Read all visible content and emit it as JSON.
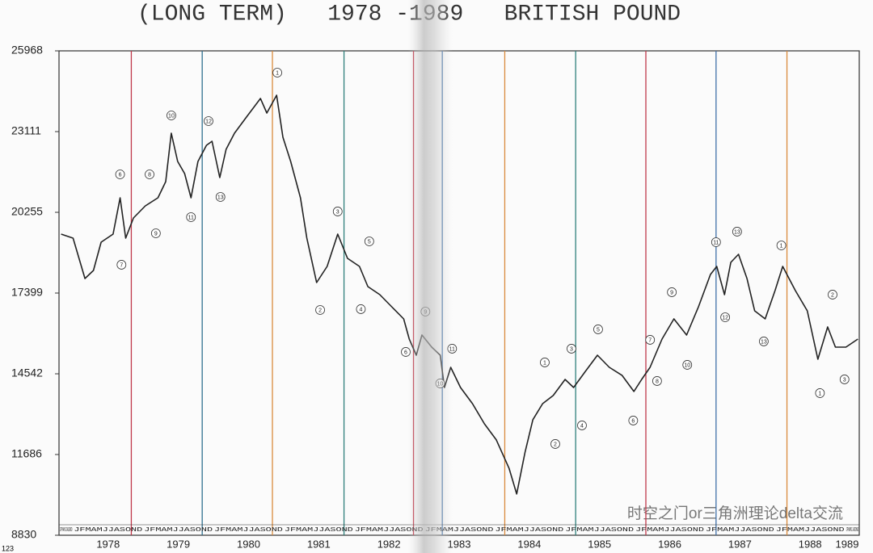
{
  "chart_data": {
    "type": "line",
    "title": "(LONG TERM)   1978 -1989   BRITISH POUND",
    "corner_label": "123",
    "month_strip": "JFMAMJJASOND",
    "watermark": "时空之门or三角洲理论delta交流",
    "xlim": [
      1977.8,
      1989.2
    ],
    "ylim": [
      8830,
      25968
    ],
    "yticks": [
      8830,
      11686,
      14542,
      17399,
      20255,
      23111,
      25968
    ],
    "xticks": [
      {
        "value": 1978.5,
        "label": "1978"
      },
      {
        "value": 1979.5,
        "label": "1979"
      },
      {
        "value": 1980.5,
        "label": "1980"
      },
      {
        "value": 1981.5,
        "label": "1981"
      },
      {
        "value": 1982.5,
        "label": "1982"
      },
      {
        "value": 1983.5,
        "label": "1983"
      },
      {
        "value": 1984.5,
        "label": "1984"
      },
      {
        "value": 1985.5,
        "label": "1985"
      },
      {
        "value": 1986.5,
        "label": "1986"
      },
      {
        "value": 1987.5,
        "label": "1987"
      },
      {
        "value": 1988.5,
        "label": "1988"
      },
      {
        "value": 1989.5,
        "label": "1989"
      }
    ],
    "cycle_lines": [
      {
        "x": 1978.83,
        "color": "#c0394a"
      },
      {
        "x": 1979.84,
        "color": "#2f6f8f"
      },
      {
        "x": 1980.84,
        "color": "#d98a3c"
      },
      {
        "x": 1981.86,
        "color": "#2f7f7a"
      },
      {
        "x": 1982.85,
        "color": "#c0394a"
      },
      {
        "x": 1983.26,
        "color": "#3f6fa8"
      },
      {
        "x": 1984.15,
        "color": "#d98a3c"
      },
      {
        "x": 1985.16,
        "color": "#2f7f7a"
      },
      {
        "x": 1986.16,
        "color": "#c0394a"
      },
      {
        "x": 1987.16,
        "color": "#3f6fa8"
      },
      {
        "x": 1988.17,
        "color": "#d98a3c"
      }
    ],
    "x": [
      1977.83,
      1978.0,
      1978.17,
      1978.29,
      1978.4,
      1978.57,
      1978.67,
      1978.75,
      1978.86,
      1979.03,
      1979.21,
      1979.32,
      1979.4,
      1979.49,
      1979.59,
      1979.68,
      1979.78,
      1979.9,
      1979.98,
      1980.09,
      1980.18,
      1980.3,
      1980.47,
      1980.67,
      1980.76,
      1980.9,
      1980.99,
      1981.1,
      1981.24,
      1981.33,
      1981.47,
      1981.62,
      1981.77,
      1981.91,
      1982.08,
      1982.2,
      1982.37,
      1982.54,
      1982.71,
      1982.79,
      1982.89,
      1982.97,
      1983.11,
      1983.23,
      1983.29,
      1983.38,
      1983.52,
      1983.69,
      1983.86,
      1984.03,
      1984.21,
      1984.32,
      1984.44,
      1984.55,
      1984.69,
      1984.84,
      1985.01,
      1985.13,
      1985.3,
      1985.47,
      1985.64,
      1985.82,
      1985.99,
      1986.1,
      1986.22,
      1986.39,
      1986.56,
      1986.74,
      1986.91,
      1987.08,
      1987.17,
      1987.28,
      1987.37,
      1987.48,
      1987.6,
      1987.71,
      1987.86,
      1988.0,
      1988.11,
      1988.29,
      1988.46,
      1988.61,
      1988.75,
      1988.86,
      1989.01,
      1989.18
    ],
    "series": [
      {
        "color": "#222222",
        "values": [
          19485,
          19342,
          17914,
          18200,
          19199,
          19485,
          20770,
          19342,
          20056,
          20484,
          20770,
          21341,
          23055,
          22055,
          21627,
          20770,
          22055,
          22626,
          22769,
          21484,
          22484,
          23055,
          23626,
          24283,
          23769,
          24397,
          22912,
          22055,
          20770,
          19342,
          17771,
          18342,
          19485,
          18628,
          18342,
          17628,
          17343,
          16914,
          16486,
          15772,
          15201,
          15915,
          15486,
          15201,
          14058,
          14772,
          14058,
          13487,
          12773,
          12202,
          11203,
          10289,
          11774,
          12916,
          13487,
          13773,
          14344,
          14058,
          14630,
          15201,
          14772,
          14487,
          13916,
          14344,
          14772,
          15772,
          16486,
          15915,
          16914,
          18057,
          18342,
          17343,
          18485,
          18771,
          17914,
          16772,
          16486,
          17486,
          18342,
          17486,
          16772,
          15058,
          16200,
          15486,
          15486,
          15772
        ]
      }
    ],
    "annotations": [
      {
        "label": "6",
        "x": 1978.67,
        "y": 21598
      },
      {
        "label": "7",
        "x": 1978.69,
        "y": 18400
      },
      {
        "label": "8",
        "x": 1979.09,
        "y": 21598
      },
      {
        "label": "9",
        "x": 1979.18,
        "y": 19513
      },
      {
        "label": "10",
        "x": 1979.4,
        "y": 23683
      },
      {
        "label": "11",
        "x": 1979.68,
        "y": 20085
      },
      {
        "label": "12",
        "x": 1979.93,
        "y": 23483
      },
      {
        "label": "13",
        "x": 1980.1,
        "y": 20799
      },
      {
        "label": "1",
        "x": 1980.91,
        "y": 25197
      },
      {
        "label": "3",
        "x": 1981.77,
        "y": 20285
      },
      {
        "label": "2",
        "x": 1981.52,
        "y": 16800
      },
      {
        "label": "5",
        "x": 1982.22,
        "y": 19228
      },
      {
        "label": "4",
        "x": 1982.1,
        "y": 16829
      },
      {
        "label": "9",
        "x": 1983.02,
        "y": 16743
      },
      {
        "label": "6",
        "x": 1982.74,
        "y": 15315
      },
      {
        "label": "11",
        "x": 1983.4,
        "y": 15430
      },
      {
        "label": "10",
        "x": 1983.23,
        "y": 14202
      },
      {
        "label": "1",
        "x": 1984.72,
        "y": 14944
      },
      {
        "label": "2",
        "x": 1984.87,
        "y": 12059
      },
      {
        "label": "3",
        "x": 1985.1,
        "y": 15430
      },
      {
        "label": "4",
        "x": 1985.25,
        "y": 12716
      },
      {
        "label": "5",
        "x": 1985.48,
        "y": 16115
      },
      {
        "label": "6",
        "x": 1985.98,
        "y": 12888
      },
      {
        "label": "7",
        "x": 1986.22,
        "y": 15744
      },
      {
        "label": "8",
        "x": 1986.32,
        "y": 14287
      },
      {
        "label": "9",
        "x": 1986.53,
        "y": 17429
      },
      {
        "label": "10",
        "x": 1986.75,
        "y": 14858
      },
      {
        "label": "11",
        "x": 1987.16,
        "y": 19199
      },
      {
        "label": "12",
        "x": 1987.29,
        "y": 16543
      },
      {
        "label": "13",
        "x": 1987.46,
        "y": 19571
      },
      {
        "label": "13",
        "x": 1987.84,
        "y": 15687
      },
      {
        "label": "1",
        "x": 1988.09,
        "y": 19085
      },
      {
        "label": "2",
        "x": 1988.82,
        "y": 17343
      },
      {
        "label": "1",
        "x": 1988.64,
        "y": 13859
      },
      {
        "label": "3",
        "x": 1988.99,
        "y": 14344
      }
    ]
  }
}
